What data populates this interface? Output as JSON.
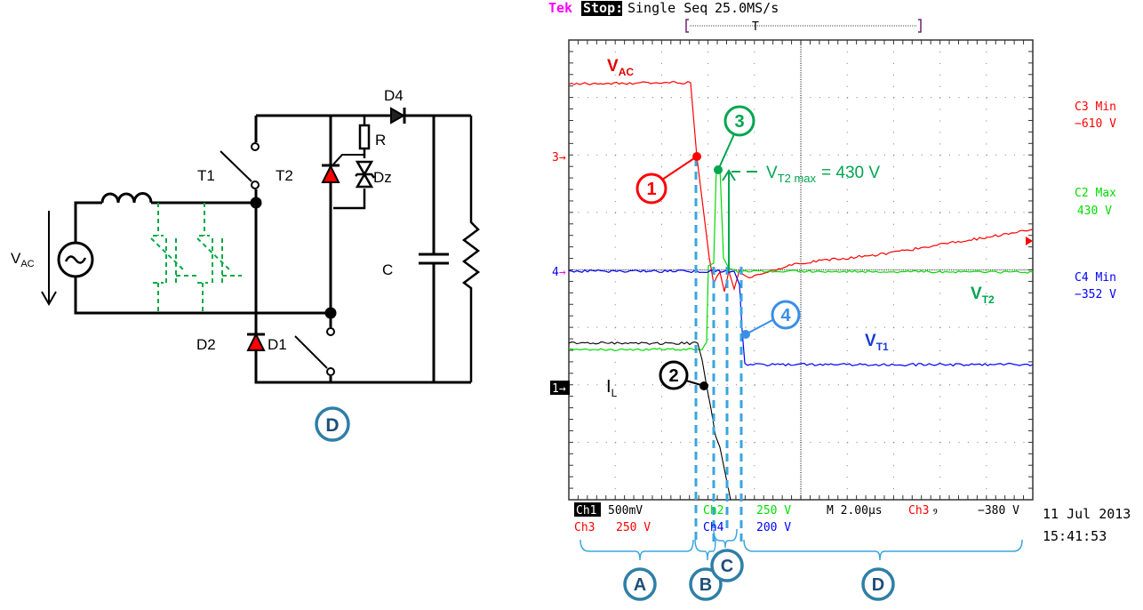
{
  "circuit": {
    "labels": {
      "d4": "D4",
      "r": "R",
      "t1": "T1",
      "t2": "T2",
      "dz": "Dz",
      "c": "C",
      "d2": "D2",
      "d1": "D1",
      "vac_main": "V",
      "vac_sub": "AC"
    },
    "phase_badge": "D"
  },
  "scope": {
    "header": {
      "brand": "Tek",
      "state": "Stop:",
      "mode": "Single Seq",
      "rate": "25.0MS/s",
      "trigger_marker": "T"
    },
    "trace_labels": {
      "vac_main": "V",
      "vac_sub": "AC",
      "vt2_main": "V",
      "vt2_sub": "T2",
      "vt1_main": "V",
      "vt1_sub": "T1",
      "il_main": "I",
      "il_sub": "L"
    },
    "annotation": {
      "main": "V",
      "sub": "T2 max",
      "value": "= 430 V"
    },
    "markers": [
      "1",
      "2",
      "3",
      "4"
    ],
    "channel_markers": {
      "ch3": "3",
      "ch4": "4",
      "ch1": "1"
    },
    "measurements": [
      {
        "label": "C3 Min",
        "value": "−610 V",
        "color": "#ff0000"
      },
      {
        "label": "C2 Max",
        "value": "430 V",
        "color": "#00dd00"
      },
      {
        "label": "C4 Min",
        "value": "−352 V",
        "color": "#0000ff"
      }
    ],
    "footer": {
      "ch1": "Ch1",
      "ch1_scale": "500mV",
      "ch3": "Ch3",
      "ch3_scale": "250 V",
      "ch2": "Ch2",
      "ch2_scale": "250 V",
      "ch4": "Ch4",
      "ch4_scale": "200 V",
      "timebase": "M 2.00µs",
      "trig_src": "Ch3",
      "trig_slope": "ⳋ",
      "trig_level": "−380 V",
      "date": "11 Jul 2013",
      "time": "15:41:53"
    },
    "phases": [
      "A",
      "B",
      "C",
      "D"
    ]
  },
  "colors": {
    "vac": "#ff0000",
    "vt2": "#00dd00",
    "vt1": "#0000ff",
    "il": "#000000",
    "annotation_green": "#00a550",
    "phase": "#2e7fa8",
    "phase_text": "#1f4e79",
    "dashes": "#3aa6dd",
    "brand": "#ff00ff"
  }
}
